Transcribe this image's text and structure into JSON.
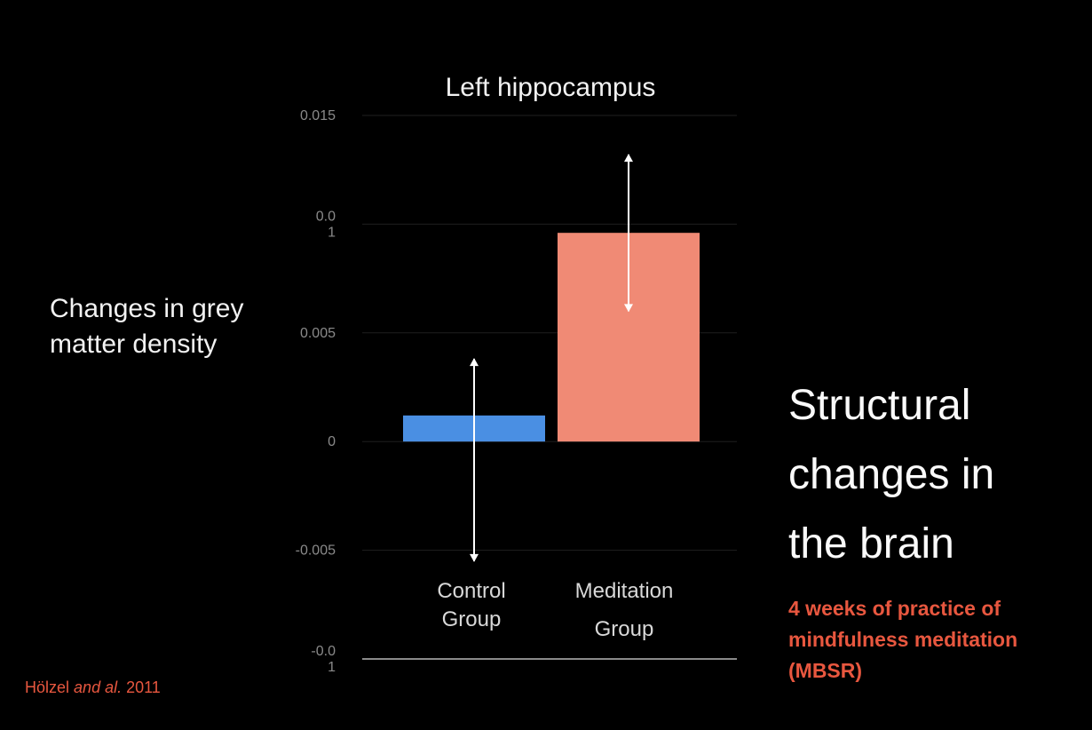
{
  "slide": {
    "heading_lines": [
      "Structural",
      "changes in",
      "the brain"
    ],
    "subtitle_lines": [
      "4 weeks of practice of",
      "mindfulness meditation",
      "(MBSR)"
    ],
    "citation": {
      "author": "Hölzel",
      "connector": "and al.",
      "year": "2011"
    }
  },
  "chart_data": {
    "type": "bar",
    "title": "Left hippocampus",
    "ylabel_lines": [
      "Changes in grey",
      "matter density"
    ],
    "xlabel": "",
    "ylim": [
      -0.01,
      0.015
    ],
    "grid": true,
    "yticks": [
      {
        "value": 0.015,
        "label_lines": [
          "0.015"
        ]
      },
      {
        "value": 0.01,
        "label_lines": [
          "0.0",
          "1"
        ]
      },
      {
        "value": 0.005,
        "label_lines": [
          "0.005"
        ]
      },
      {
        "value": 0,
        "label_lines": [
          "0"
        ]
      },
      {
        "value": -0.005,
        "label_lines": [
          "-0.005"
        ]
      },
      {
        "value": -0.01,
        "label_lines": [
          "-0.0",
          "1"
        ]
      }
    ],
    "categories": [
      {
        "label_lines": [
          "Control",
          "Group"
        ]
      },
      {
        "label_lines": [
          "Meditation",
          "Group"
        ]
      }
    ],
    "values": [
      0.0012,
      0.0096
    ],
    "error_bars": [
      {
        "low": -0.0055,
        "high": 0.0038
      },
      {
        "low": 0.006,
        "high": 0.0132
      }
    ],
    "colors": [
      "#4a8fe3",
      "#f08a75"
    ],
    "error_bar_color": "#ffffff",
    "grid_color": "#1f1f1f",
    "baseline_color": "#8a8a8a"
  }
}
